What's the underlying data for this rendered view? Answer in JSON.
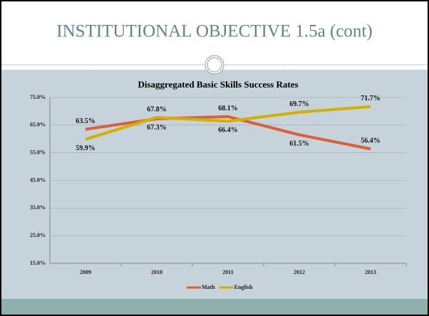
{
  "header": {
    "title": "INSTITUTIONAL OBJECTIVE 1.5a (cont)"
  },
  "chart_data": {
    "type": "line",
    "title": "Disaggregated Basic Skills Success Rates",
    "categories": [
      "2009",
      "2010",
      "2011",
      "2012",
      "2013"
    ],
    "series": [
      {
        "name": "Math",
        "color": "#d9603b",
        "values": [
          63.5,
          67.3,
          68.1,
          61.5,
          56.4
        ],
        "value_labels": [
          "63.5%",
          "67.3%",
          "68.1%",
          "61.5%",
          "56.4%"
        ]
      },
      {
        "name": "English",
        "color": "#d1b000",
        "values": [
          59.9,
          67.8,
          66.4,
          69.7,
          71.7
        ],
        "value_labels": [
          "59.9%",
          "67.8%",
          "66.4%",
          "69.7%",
          "71.7%"
        ]
      }
    ],
    "ylim": [
      15,
      75
    ],
    "yticks": [
      {
        "value": 15,
        "label": "15.0%"
      },
      {
        "value": 25,
        "label": "25.0%"
      },
      {
        "value": 35,
        "label": "35.0%"
      },
      {
        "value": 45,
        "label": "45.0%"
      },
      {
        "value": 55,
        "label": "55.0%"
      },
      {
        "value": 65,
        "label": "65.0%"
      },
      {
        "value": 75,
        "label": "75.0%"
      }
    ],
    "grid": true,
    "legend": "bottom"
  }
}
